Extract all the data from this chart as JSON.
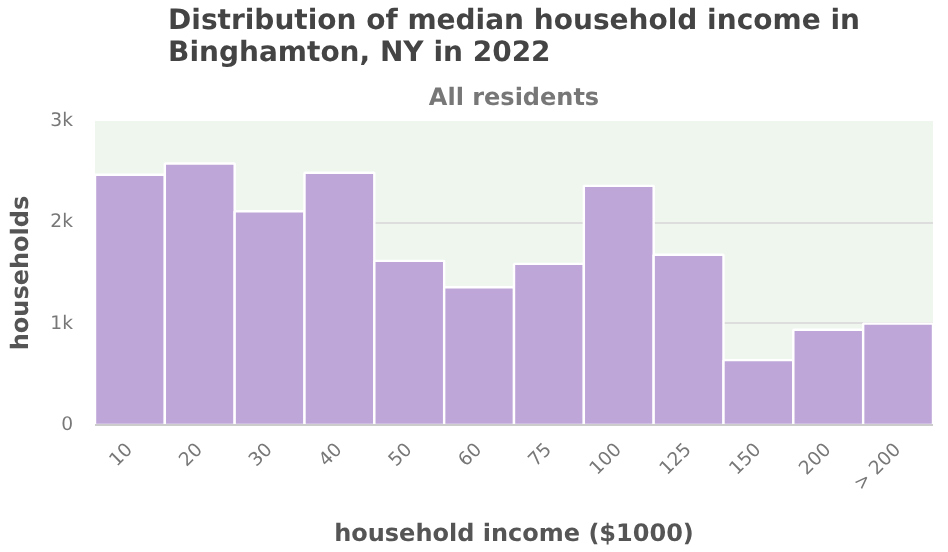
{
  "chart_data": {
    "type": "bar",
    "title": "Distribution of median household income in Binghamton, NY in 2022",
    "subtitle": "All residents",
    "xlabel": "household income ($1000)",
    "ylabel": "households",
    "categories": [
      "10",
      "20",
      "30",
      "40",
      "50",
      "60",
      "75",
      "100",
      "125",
      "150",
      "200",
      "> 200"
    ],
    "values": [
      2470,
      2580,
      2110,
      2490,
      1620,
      1360,
      1590,
      2360,
      1680,
      640,
      940,
      1000
    ],
    "color": "#bea6d9",
    "ylim": [
      0,
      3000
    ],
    "yticks": [
      {
        "value": 0,
        "label": "0"
      },
      {
        "value": 1000,
        "label": "1k"
      },
      {
        "value": 2000,
        "label": "2k"
      },
      {
        "value": 3000,
        "label": "3k"
      }
    ],
    "grid": "y"
  }
}
